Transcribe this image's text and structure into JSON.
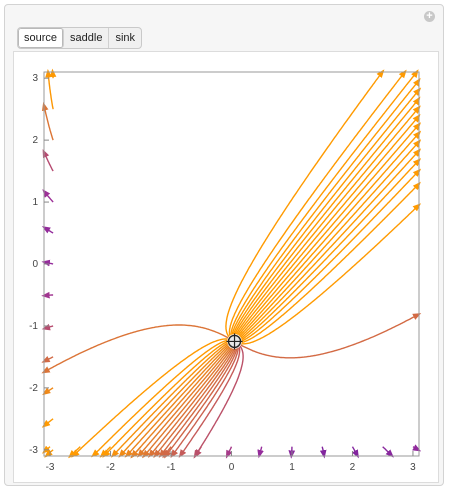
{
  "controls": {
    "tabs": [
      {
        "label": "source",
        "selected": true
      },
      {
        "label": "saddle",
        "selected": false
      },
      {
        "label": "sink",
        "selected": false
      }
    ],
    "plus_icon": "plus-circle-icon"
  },
  "chart_data": {
    "type": "stream",
    "title": "",
    "xlabel": "",
    "ylabel": "",
    "xlim": [
      -3.1,
      3.1
    ],
    "ylim": [
      -3.1,
      3.1
    ],
    "x_ticks": [
      "-3",
      "-2",
      "-1",
      "0",
      "1",
      "2",
      "3"
    ],
    "y_ticks": [
      "3",
      "2",
      "1",
      "0",
      "-1",
      "-2",
      "-3"
    ],
    "critical_point": {
      "x": 0.05,
      "y": -1.25
    },
    "grid": false,
    "colors": {
      "low": "#3b0aa8",
      "mid": "#9b2e9a",
      "high": "#ff9a00",
      "background": "#ffffff",
      "axis": "#888888"
    }
  }
}
